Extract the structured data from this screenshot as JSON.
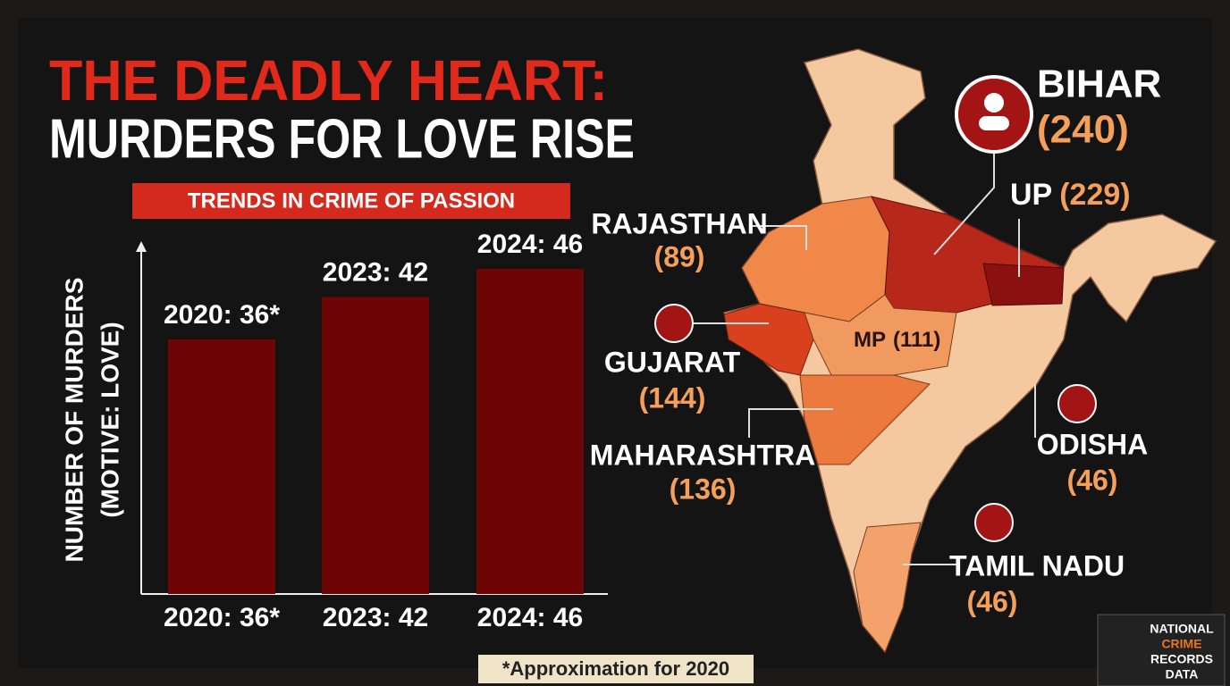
{
  "header": {
    "title_lines": [
      "THE DEADLY HEART:",
      "MURDERS FOR LOVE RISE"
    ],
    "subtitle": "TRENDS IN CRIME OF PASSION"
  },
  "chart_data": {
    "type": "bar",
    "categories": [
      "2020: 36*",
      "2023: 42",
      "2024: 46"
    ],
    "values": [
      36,
      42,
      46
    ],
    "value_labels": [
      "2020: 36*",
      "2023: 42",
      "2024: 46"
    ],
    "y_label": [
      "NUMBER OF MURDERS",
      "(MOTIVE: LOVE)"
    ],
    "ylim": [
      0,
      48
    ],
    "color": "#6e0505"
  },
  "map": {
    "regions": [
      {
        "label": "BIHAR",
        "count": "(240)"
      },
      {
        "label": "UP",
        "count": "(229)"
      },
      {
        "label": "RAJASTHAN",
        "count": "(89)"
      },
      {
        "label": "GUJARAT",
        "count": "(144)"
      },
      {
        "label": "MP",
        "count": "(111)"
      },
      {
        "label": "MAHARASHTRA",
        "count": "(136)"
      },
      {
        "label": "ODISHA",
        "count": "(46)"
      },
      {
        "label": "TAMIL NADU",
        "count": "(46)"
      }
    ]
  },
  "footnote": "*Approximation for 2020",
  "badge": [
    "NATIONAL",
    "CRIME",
    "RECORDS",
    "DATA"
  ]
}
